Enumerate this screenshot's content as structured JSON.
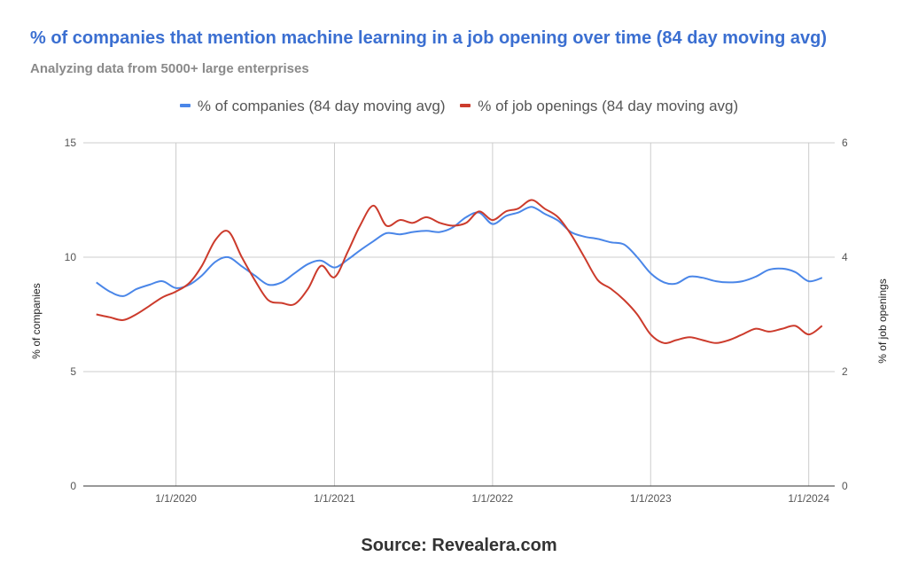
{
  "chart_data": {
    "type": "line",
    "title": "% of companies that mention machine learning in a job opening over time (84 day moving avg)",
    "subtitle": "Analyzing data from 5000+ large enterprises",
    "footer": "Source: Revealera.com",
    "ylabel_left": "% of companies",
    "ylabel_right": "% of job openings",
    "y_left_range": [
      0,
      15
    ],
    "y_right_range": [
      0,
      6
    ],
    "y_left_ticks": [
      "0",
      "5",
      "10",
      "15"
    ],
    "y_right_ticks": [
      "0",
      "2",
      "4",
      "6"
    ],
    "x_ticks": [
      "1/1/2020",
      "1/1/2021",
      "1/1/2022",
      "1/1/2023",
      "1/1/2024"
    ],
    "grid": true,
    "legend_position": "top",
    "series": [
      {
        "name": "% of companies (84 day moving avg)",
        "color": "#4a86e8",
        "axis": "left",
        "points": [
          [
            "2019-07-01",
            8.9
          ],
          [
            "2019-08-01",
            8.5
          ],
          [
            "2019-09-01",
            8.3
          ],
          [
            "2019-10-01",
            8.6
          ],
          [
            "2019-11-01",
            8.8
          ],
          [
            "2019-12-01",
            8.95
          ],
          [
            "2020-01-01",
            8.65
          ],
          [
            "2020-02-01",
            8.8
          ],
          [
            "2020-03-01",
            9.2
          ],
          [
            "2020-04-01",
            9.8
          ],
          [
            "2020-05-01",
            10.0
          ],
          [
            "2020-06-01",
            9.6
          ],
          [
            "2020-07-01",
            9.2
          ],
          [
            "2020-08-01",
            8.8
          ],
          [
            "2020-09-01",
            8.9
          ],
          [
            "2020-10-01",
            9.3
          ],
          [
            "2020-11-01",
            9.7
          ],
          [
            "2020-12-01",
            9.85
          ],
          [
            "2021-01-01",
            9.55
          ],
          [
            "2021-02-01",
            9.9
          ],
          [
            "2021-03-01",
            10.3
          ],
          [
            "2021-04-01",
            10.7
          ],
          [
            "2021-05-01",
            11.05
          ],
          [
            "2021-06-01",
            11.0
          ],
          [
            "2021-07-01",
            11.1
          ],
          [
            "2021-08-01",
            11.15
          ],
          [
            "2021-09-01",
            11.1
          ],
          [
            "2021-10-01",
            11.3
          ],
          [
            "2021-11-01",
            11.75
          ],
          [
            "2021-12-01",
            11.95
          ],
          [
            "2022-01-01",
            11.45
          ],
          [
            "2022-02-01",
            11.8
          ],
          [
            "2022-03-01",
            11.95
          ],
          [
            "2022-04-01",
            12.2
          ],
          [
            "2022-05-01",
            11.9
          ],
          [
            "2022-06-01",
            11.6
          ],
          [
            "2022-07-01",
            11.1
          ],
          [
            "2022-08-01",
            10.9
          ],
          [
            "2022-09-01",
            10.8
          ],
          [
            "2022-10-01",
            10.65
          ],
          [
            "2022-11-01",
            10.55
          ],
          [
            "2022-12-01",
            10.0
          ],
          [
            "2023-01-01",
            9.3
          ],
          [
            "2023-02-01",
            8.9
          ],
          [
            "2023-03-01",
            8.85
          ],
          [
            "2023-04-01",
            9.15
          ],
          [
            "2023-05-01",
            9.1
          ],
          [
            "2023-06-01",
            8.95
          ],
          [
            "2023-07-01",
            8.9
          ],
          [
            "2023-08-01",
            8.95
          ],
          [
            "2023-09-01",
            9.15
          ],
          [
            "2023-10-01",
            9.45
          ],
          [
            "2023-11-01",
            9.5
          ],
          [
            "2023-12-01",
            9.35
          ],
          [
            "2024-01-01",
            8.95
          ],
          [
            "2024-02-01",
            9.1
          ]
        ]
      },
      {
        "name": "% of job openings (84 day moving avg)",
        "color": "#cc3b2c",
        "axis": "right",
        "points": [
          [
            "2019-07-01",
            3.0
          ],
          [
            "2019-08-01",
            2.95
          ],
          [
            "2019-09-01",
            2.9
          ],
          [
            "2019-10-01",
            3.0
          ],
          [
            "2019-11-01",
            3.15
          ],
          [
            "2019-12-01",
            3.3
          ],
          [
            "2020-01-01",
            3.4
          ],
          [
            "2020-02-01",
            3.55
          ],
          [
            "2020-03-01",
            3.85
          ],
          [
            "2020-04-01",
            4.3
          ],
          [
            "2020-05-01",
            4.45
          ],
          [
            "2020-06-01",
            4.0
          ],
          [
            "2020-07-01",
            3.6
          ],
          [
            "2020-08-01",
            3.25
          ],
          [
            "2020-09-01",
            3.2
          ],
          [
            "2020-10-01",
            3.18
          ],
          [
            "2020-11-01",
            3.45
          ],
          [
            "2020-12-01",
            3.85
          ],
          [
            "2021-01-01",
            3.65
          ],
          [
            "2021-02-01",
            4.1
          ],
          [
            "2021-03-01",
            4.55
          ],
          [
            "2021-04-01",
            4.9
          ],
          [
            "2021-05-01",
            4.55
          ],
          [
            "2021-06-01",
            4.65
          ],
          [
            "2021-07-01",
            4.6
          ],
          [
            "2021-08-01",
            4.7
          ],
          [
            "2021-09-01",
            4.6
          ],
          [
            "2021-10-01",
            4.55
          ],
          [
            "2021-11-01",
            4.6
          ],
          [
            "2021-12-01",
            4.8
          ],
          [
            "2022-01-01",
            4.65
          ],
          [
            "2022-02-01",
            4.8
          ],
          [
            "2022-03-01",
            4.85
          ],
          [
            "2022-04-01",
            5.0
          ],
          [
            "2022-05-01",
            4.85
          ],
          [
            "2022-06-01",
            4.7
          ],
          [
            "2022-07-01",
            4.4
          ],
          [
            "2022-08-01",
            4.0
          ],
          [
            "2022-09-01",
            3.6
          ],
          [
            "2022-10-01",
            3.45
          ],
          [
            "2022-11-01",
            3.25
          ],
          [
            "2022-12-01",
            3.0
          ],
          [
            "2023-01-01",
            2.65
          ],
          [
            "2023-02-01",
            2.5
          ],
          [
            "2023-03-01",
            2.55
          ],
          [
            "2023-04-01",
            2.6
          ],
          [
            "2023-05-01",
            2.55
          ],
          [
            "2023-06-01",
            2.5
          ],
          [
            "2023-07-01",
            2.55
          ],
          [
            "2023-08-01",
            2.65
          ],
          [
            "2023-09-01",
            2.75
          ],
          [
            "2023-10-01",
            2.7
          ],
          [
            "2023-11-01",
            2.75
          ],
          [
            "2023-12-01",
            2.8
          ],
          [
            "2024-01-01",
            2.65
          ],
          [
            "2024-02-01",
            2.8
          ]
        ]
      }
    ]
  }
}
